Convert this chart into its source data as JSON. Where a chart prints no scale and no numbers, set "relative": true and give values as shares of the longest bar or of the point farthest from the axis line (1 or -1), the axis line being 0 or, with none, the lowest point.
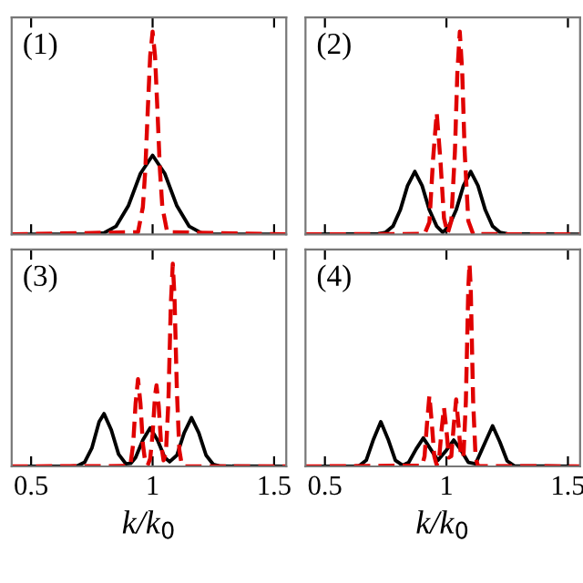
{
  "chart_data": [
    {
      "type": "line",
      "relative": true,
      "xlim": [
        0.42,
        1.55
      ],
      "xticks": [
        0.5,
        1,
        1.5
      ],
      "tick_labels": false,
      "annotations": [
        "(1)"
      ],
      "series": [
        {
          "color": "#000000",
          "line_style": "solid",
          "x": [
            0.42,
            0.75,
            0.8,
            0.85,
            0.9,
            0.95,
            1.0,
            1.05,
            1.1,
            1.15,
            1.2,
            1.25,
            1.55
          ],
          "values": [
            0,
            0,
            0.007,
            0.04,
            0.14,
            0.3,
            0.39,
            0.3,
            0.14,
            0.04,
            0.007,
            0,
            0
          ]
        },
        {
          "color": "#e00000",
          "line_style": "dashed",
          "x": [
            0.42,
            0.94,
            0.96,
            0.97,
            0.98,
            0.99,
            1.0,
            1.01,
            1.02,
            1.03,
            1.04,
            1.06,
            1.55
          ],
          "values": [
            0,
            0.011,
            0.135,
            0.32,
            0.61,
            0.88,
            1,
            0.88,
            0.61,
            0.32,
            0.135,
            0.011,
            0
          ]
        }
      ]
    },
    {
      "type": "line",
      "relative": true,
      "xlim": [
        0.42,
        1.55
      ],
      "xticks": [
        0.5,
        1,
        1.5
      ],
      "tick_labels": false,
      "annotations": [
        "(2)"
      ],
      "series": [
        {
          "color": "#000000",
          "line_style": "solid",
          "x": [
            0.42,
            0.72,
            0.75,
            0.78,
            0.81,
            0.84,
            0.87,
            0.9,
            0.93,
            0.96,
            0.985,
            1.01,
            1.04,
            1.07,
            1.1,
            1.13,
            1.16,
            1.19,
            1.22,
            1.25,
            1.55
          ],
          "values": [
            0,
            0.003,
            0.01,
            0.04,
            0.12,
            0.24,
            0.31,
            0.24,
            0.12,
            0.04,
            0.01,
            0.04,
            0.12,
            0.24,
            0.31,
            0.24,
            0.12,
            0.04,
            0.01,
            0.003,
            0
          ]
        },
        {
          "color": "#e00000",
          "line_style": "dashed",
          "x": [
            0.42,
            0.91,
            0.93,
            0.945,
            0.96,
            0.975,
            0.99,
            1.005,
            1.02,
            1.035,
            1.045,
            1.055,
            1.065,
            1.075,
            1.09,
            1.11,
            1.55
          ],
          "values": [
            0,
            0.002,
            0.06,
            0.37,
            0.6,
            0.37,
            0.08,
            0.004,
            0.066,
            0.41,
            0.8,
            1,
            0.8,
            0.41,
            0.066,
            0.001,
            0
          ]
        }
      ]
    },
    {
      "type": "line",
      "relative": true,
      "xlim": [
        0.42,
        1.55
      ],
      "xticks": [
        0.5,
        1,
        1.5
      ],
      "tick_labels": "x",
      "xlabel": "k/k$_{0}$",
      "annotations": [
        "(3)"
      ],
      "series": [
        {
          "color": "#000000",
          "line_style": "solid",
          "x": [
            0.42,
            0.66,
            0.69,
            0.72,
            0.75,
            0.78,
            0.8,
            0.83,
            0.86,
            0.89,
            0.91,
            0.93,
            0.96,
            0.99,
            1.02,
            1.05,
            1.07,
            1.1,
            1.13,
            1.16,
            1.19,
            1.22,
            1.25,
            1.28,
            1.55
          ],
          "values": [
            0,
            0,
            0.002,
            0.02,
            0.09,
            0.22,
            0.26,
            0.18,
            0.06,
            0.013,
            0.015,
            0.044,
            0.13,
            0.19,
            0.13,
            0.044,
            0.023,
            0.055,
            0.166,
            0.24,
            0.166,
            0.055,
            0.009,
            0.001,
            0
          ]
        },
        {
          "color": "#e00000",
          "line_style": "dashed",
          "x": [
            0.42,
            0.9,
            0.91,
            0.92,
            0.93,
            0.94,
            0.95,
            0.96,
            0.97,
            0.98,
            0.99,
            1.0,
            1.01,
            1.016,
            1.025,
            1.035,
            1.045,
            1.055,
            1.065,
            1.075,
            1.083,
            1.09,
            1.1,
            1.11,
            1.12,
            1.13,
            1.55
          ],
          "values": [
            0,
            0.002,
            0.019,
            0.11,
            0.31,
            0.43,
            0.31,
            0.11,
            0.019,
            0.006,
            0.038,
            0.16,
            0.35,
            0.4,
            0.3,
            0.11,
            0.03,
            0.07,
            0.32,
            0.8,
            1,
            0.84,
            0.37,
            0.08,
            0.009,
            0,
            0
          ]
        }
      ]
    },
    {
      "type": "line",
      "relative": true,
      "xlim": [
        0.42,
        1.55
      ],
      "xticks": [
        0.5,
        1,
        1.5
      ],
      "tick_labels": "x",
      "xlabel": "k/k$_{0}$",
      "annotations": [
        "(4)"
      ],
      "series": [
        {
          "color": "#000000",
          "line_style": "solid",
          "x": [
            0.42,
            0.62,
            0.64,
            0.67,
            0.7,
            0.73,
            0.76,
            0.79,
            0.82,
            0.845,
            0.875,
            0.905,
            0.935,
            0.965,
            1.0,
            1.03,
            1.06,
            1.09,
            1.12,
            1.16,
            1.19,
            1.22,
            1.25,
            1.28,
            1.55
          ],
          "values": [
            0,
            0,
            0.002,
            0.03,
            0.134,
            0.22,
            0.134,
            0.03,
            0.005,
            0.02,
            0.085,
            0.14,
            0.085,
            0.03,
            0.08,
            0.13,
            0.08,
            0.02,
            0.013,
            0.12,
            0.2,
            0.12,
            0.027,
            0.002,
            0
          ]
        },
        {
          "color": "#e00000",
          "line_style": "dashed",
          "x": [
            0.42,
            0.9,
            0.91,
            0.92,
            0.93,
            0.94,
            0.95,
            0.96,
            0.97,
            0.98,
            0.99,
            1.0,
            1.01,
            1.02,
            1.03,
            1.04,
            1.05,
            1.06,
            1.07,
            1.08,
            1.09,
            1.095,
            1.1,
            1.11,
            1.12,
            1.13,
            1.55
          ],
          "values": [
            0,
            0.004,
            0.05,
            0.21,
            0.35,
            0.21,
            0.05,
            0.007,
            0.04,
            0.18,
            0.29,
            0.18,
            0.044,
            0.05,
            0.2,
            0.33,
            0.2,
            0.047,
            0.048,
            0.32,
            0.88,
            1,
            0.88,
            0.32,
            0.044,
            0.002,
            0
          ]
        }
      ]
    }
  ]
}
